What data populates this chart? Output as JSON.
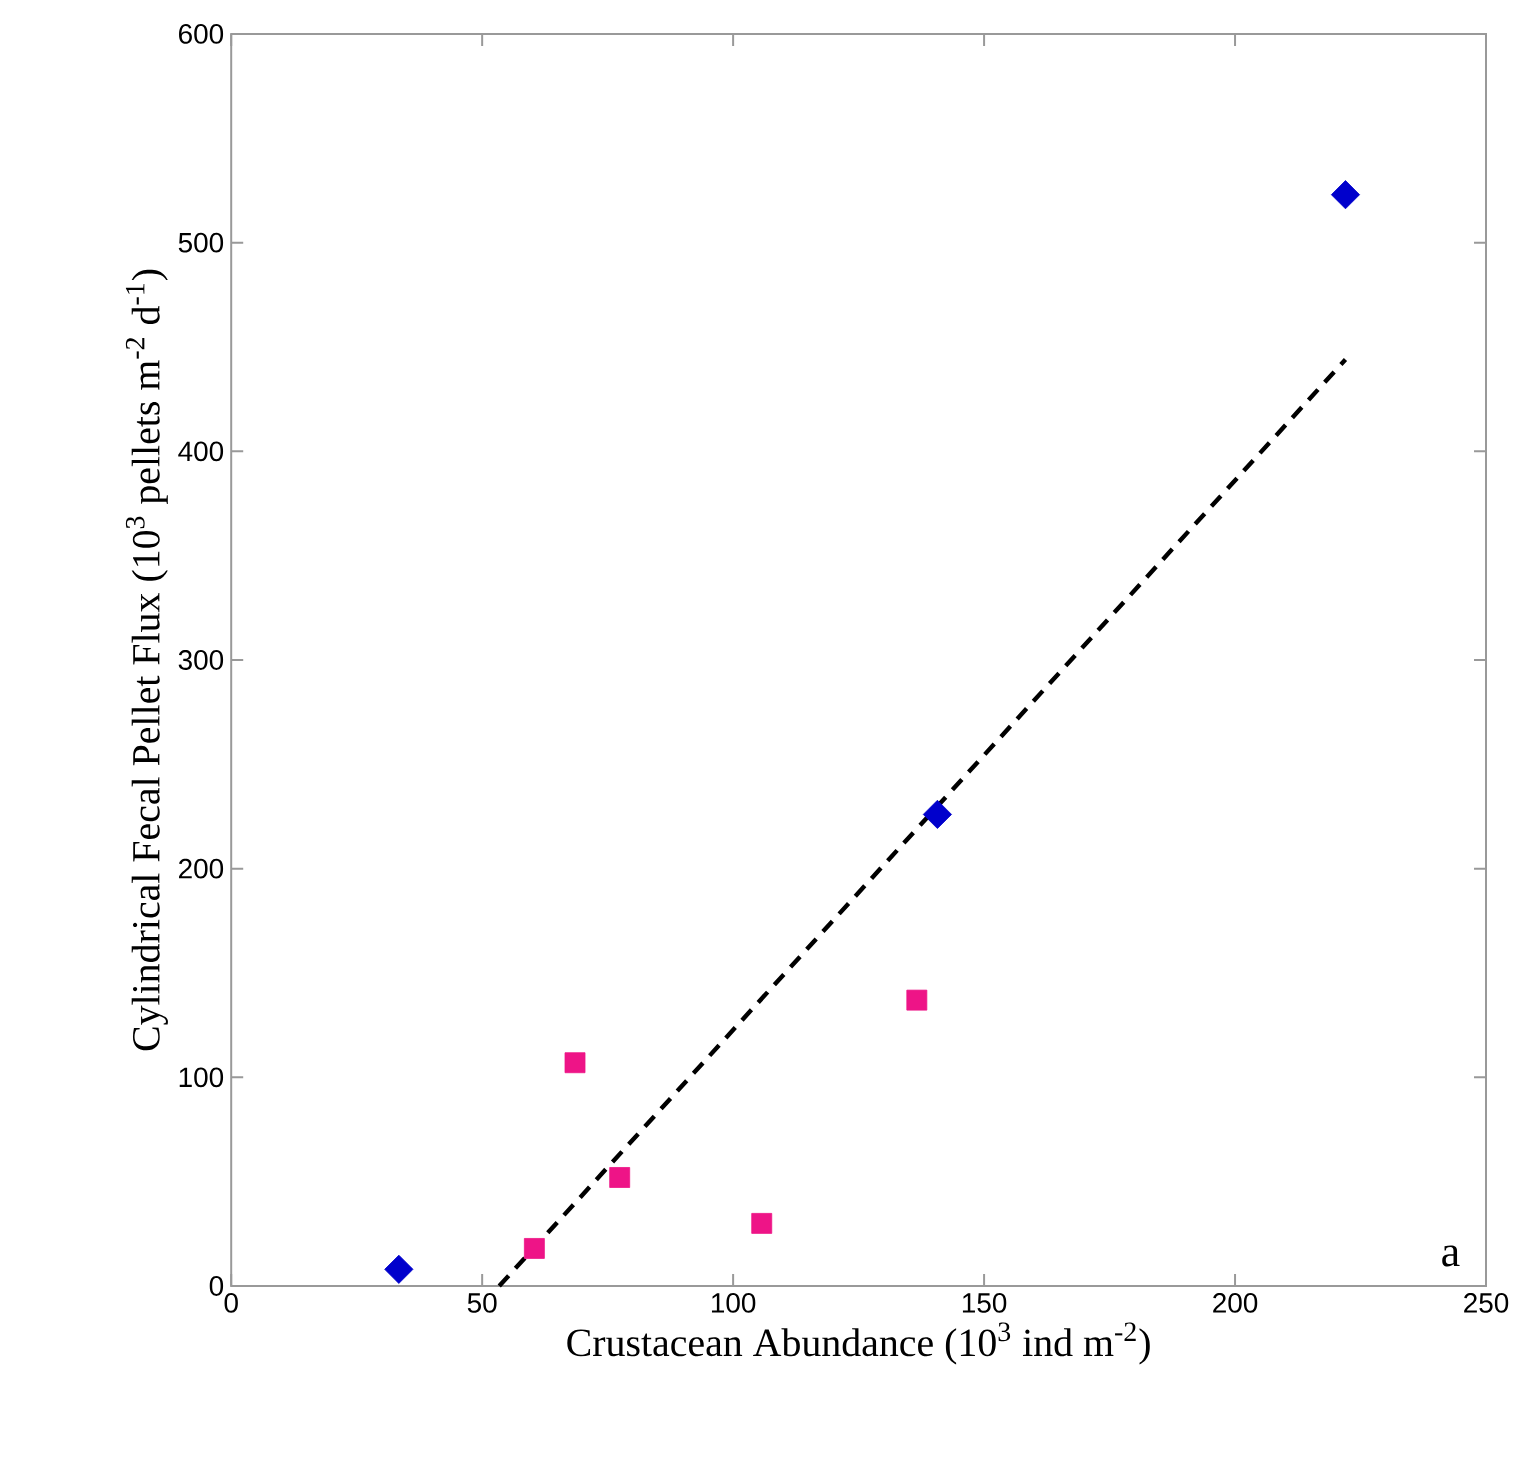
{
  "chart_data": {
    "type": "scatter",
    "xlabel": "Crustacean Abundance (10$^{3}$ ind m$^{-2}$)",
    "ylabel": "Cylindrical Fecal Pellet Flux (10$^{3}$ pellets m$^{-2}$ d$^{-1}$)",
    "xlim": [
      0,
      250
    ],
    "ylim": [
      0,
      600
    ],
    "xticks": [
      0,
      50,
      100,
      150,
      200,
      250
    ],
    "yticks": [
      0,
      100,
      200,
      300,
      400,
      500,
      600
    ],
    "grid": false,
    "series": [
      {
        "type": "line",
        "color": "#000000",
        "line_style": "dashed",
        "marker": "none",
        "x": [
          53.4,
          222
        ],
        "values": [
          0,
          444
        ]
      },
      {
        "color": "#0000cc",
        "marker": "diamond",
        "x": [
          33.4,
          140.7,
          222
        ],
        "values": [
          8,
          226,
          523
        ]
      },
      {
        "color": "#ee1487",
        "marker": "square",
        "x": [
          60.4,
          68.5,
          77.4,
          105.7,
          136.6
        ],
        "values": [
          18,
          107,
          52,
          30,
          137
        ]
      }
    ],
    "annotations": [
      "a"
    ]
  }
}
